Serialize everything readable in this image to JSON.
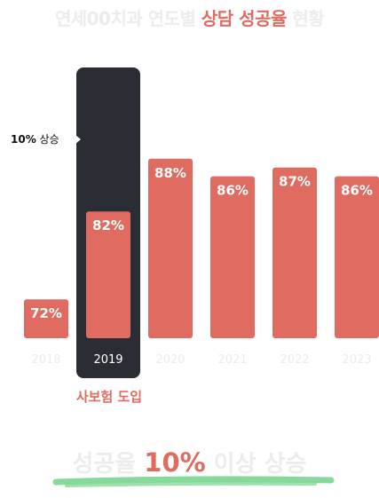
{
  "header": {
    "title_part1": "연세00치과 연도별 ",
    "title_accent": "상담 성공율",
    "title_part2": " 현황"
  },
  "annotation": {
    "value": "10%",
    "label": " 상승"
  },
  "highlight_caption": "사보험 도입",
  "footer": {
    "part1": "성공율 ",
    "accent": "10%",
    "part2": " 이상 상승"
  },
  "colors": {
    "bar": "#e06b60",
    "highlight_panel": "#2b2d35",
    "faded_text": "#ececec",
    "underline": "#86d99a"
  },
  "chart_data": {
    "type": "bar",
    "categories": [
      "2018",
      "2019",
      "2020",
      "2021",
      "2022",
      "2023"
    ],
    "values": [
      72,
      82,
      88,
      86,
      87,
      86
    ],
    "data_labels": [
      "72%",
      "82%",
      "88%",
      "86%",
      "87%",
      "86%"
    ],
    "highlighted_category": "2019",
    "unit": "%",
    "title": "연세00치과 연도별 상담 성공율 현황",
    "xlabel": "",
    "ylabel": "",
    "grid": false,
    "legend": false
  }
}
